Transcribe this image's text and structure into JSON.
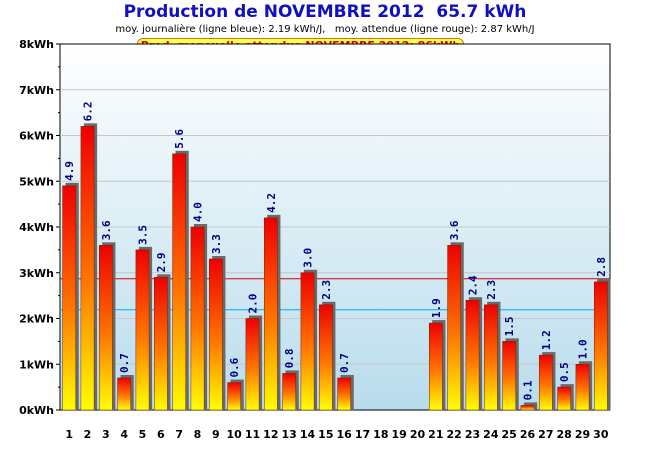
{
  "title": "Production de NOVEMBRE 2012  65.7 kWh",
  "subtitle": "moy. journalière (ligne bleue): 2.19 kWh/J,   moy. attendue (ligne rouge): 2.87 kWh/J",
  "expected_label": "Prod. mensuelle attendue NOVEMBRE 2012: 86kWh",
  "colors": {
    "bar_top": "#ee0000",
    "bar_bottom": "#ffff00",
    "daily_average_line": "#00aaff",
    "expected_average_line": "#dd0000",
    "value_label": "#000080"
  },
  "chart_data": {
    "type": "bar",
    "title": "Production de NOVEMBRE 2012  65.7 kWh",
    "xlabel": "",
    "ylabel": "",
    "ylim": [
      0,
      8
    ],
    "yticks": [
      "0kWh",
      "1kWh",
      "2kWh",
      "3kWh",
      "4kWh",
      "5kWh",
      "6kWh",
      "7kWh",
      "8kWh"
    ],
    "categories": [
      "1",
      "2",
      "3",
      "4",
      "5",
      "6",
      "7",
      "8",
      "9",
      "10",
      "11",
      "12",
      "13",
      "14",
      "15",
      "16",
      "17",
      "18",
      "19",
      "20",
      "21",
      "22",
      "23",
      "24",
      "25",
      "26",
      "27",
      "28",
      "29",
      "30"
    ],
    "values": [
      4.9,
      6.2,
      3.6,
      0.7,
      3.5,
      2.9,
      5.6,
      4.0,
      3.3,
      0.6,
      2.0,
      4.2,
      0.8,
      3.0,
      2.3,
      0.7,
      null,
      null,
      null,
      null,
      1.9,
      3.6,
      2.4,
      2.3,
      1.5,
      0.1,
      1.2,
      0.5,
      1.0,
      2.8
    ],
    "value_labels": [
      "4.9",
      "6.2",
      "3.6",
      "0.7",
      "3.5",
      "2.9",
      "5.6",
      "4.0",
      "3.3",
      "0.6",
      "2.0",
      "4.2",
      "0.8",
      "3.0",
      "2.3",
      "0.7",
      "",
      "",
      "",
      "",
      "1.9",
      "3.6",
      "2.4",
      "2.3",
      "1.5",
      "0.1",
      "1.2",
      "0.5",
      "1.0",
      "2.8"
    ],
    "reference_lines": [
      {
        "label": "moy. journalière",
        "value": 2.19,
        "color": "#00aaff"
      },
      {
        "label": "moy. attendue",
        "value": 2.87,
        "color": "#dd0000"
      }
    ],
    "grid": true
  }
}
